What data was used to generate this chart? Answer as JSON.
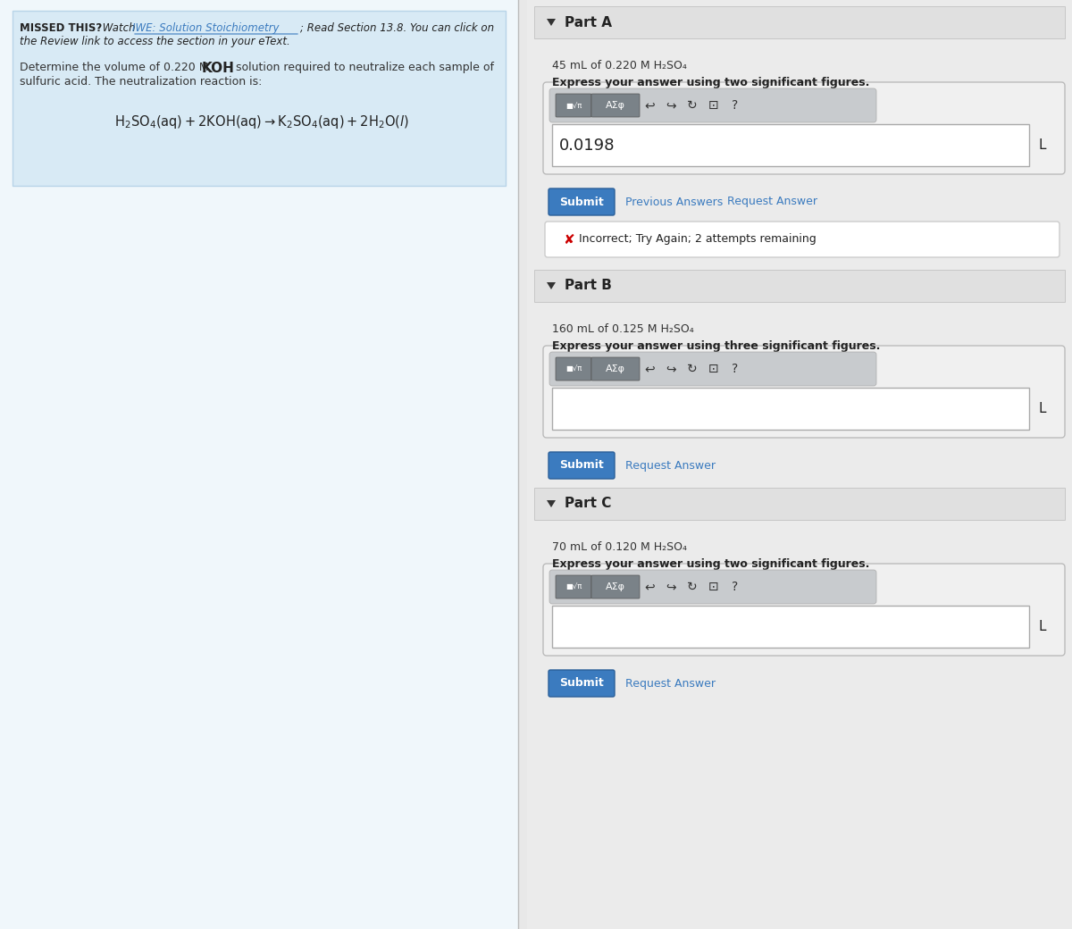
{
  "bg_left_panel": "#f0f7fb",
  "bg_right_panel": "#ebebeb",
  "bg_blue_box": "#d8eaf5",
  "border_blue_box": "#b8d4e8",
  "bg_white": "#ffffff",
  "bg_part_header": "#e0e0e0",
  "bg_input_area": "#f5f5f5",
  "bg_toolbar": "#c8cbce",
  "bg_toolbar_btn": "#7a8288",
  "border_color": "#cccccc",
  "btn_color": "#3b7bbf",
  "btn_text_color": "#ffffff",
  "link_color": "#3b7bbf",
  "error_color": "#cc0000",
  "text_dark": "#222222",
  "text_medium": "#333333",
  "partA_label": "Part A",
  "partA_problem": "45 mL of 0.220 M H₂SO₄",
  "partA_instruction": "Express your answer using two significant figures.",
  "partA_answer": "0.0198",
  "partA_unit": "L",
  "partA_btn1": "Submit",
  "partA_btn2": "Previous Answers",
  "partA_btn3": "Request Answer",
  "partA_error": "Incorrect; Try Again; 2 attempts remaining",
  "partB_label": "Part B",
  "partB_problem": "160 mL of 0.125 M H₂SO₄",
  "partB_instruction": "Express your answer using three significant figures.",
  "partB_unit": "L",
  "partB_btn1": "Submit",
  "partB_btn2": "Request Answer",
  "partC_label": "Part C",
  "partC_problem": "70 mL of 0.120 M H₂SO₄",
  "partC_instruction": "Express your answer using two significant figures.",
  "partC_unit": "L",
  "partC_btn1": "Submit",
  "partC_btn2": "Request Answer",
  "figwidth": 12.0,
  "figheight": 10.4,
  "dpi": 100
}
